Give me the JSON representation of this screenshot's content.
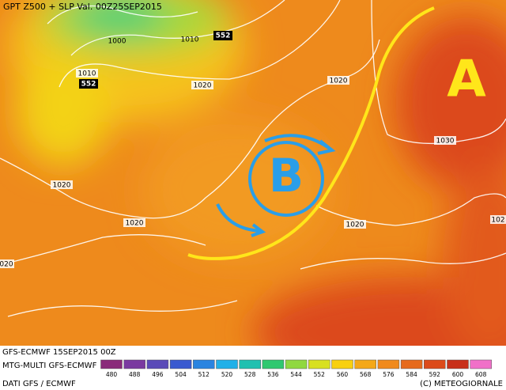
{
  "header": {
    "title": "GPT Z500 + SLP Val. 00Z25SEP2015"
  },
  "map": {
    "isobar_labels": [
      "1000",
      "1010",
      "1010",
      "1020",
      "1020",
      "1020",
      "1020",
      "1030",
      "1020",
      "020",
      "102"
    ],
    "height_labels": [
      "552",
      "552"
    ],
    "high": "A",
    "low": "B"
  },
  "footer": {
    "run": "GFS-ECMWF 15SEP2015 00Z",
    "model": "MTG-MULTI GFS-ECMWF",
    "source": "DATI GFS / ECMWF",
    "credit": "(C) METEOGIORNALE"
  },
  "legend": {
    "ticks": [
      480,
      488,
      496,
      504,
      512,
      520,
      528,
      536,
      544,
      552,
      560,
      568,
      576,
      584,
      592,
      600,
      608
    ]
  }
}
